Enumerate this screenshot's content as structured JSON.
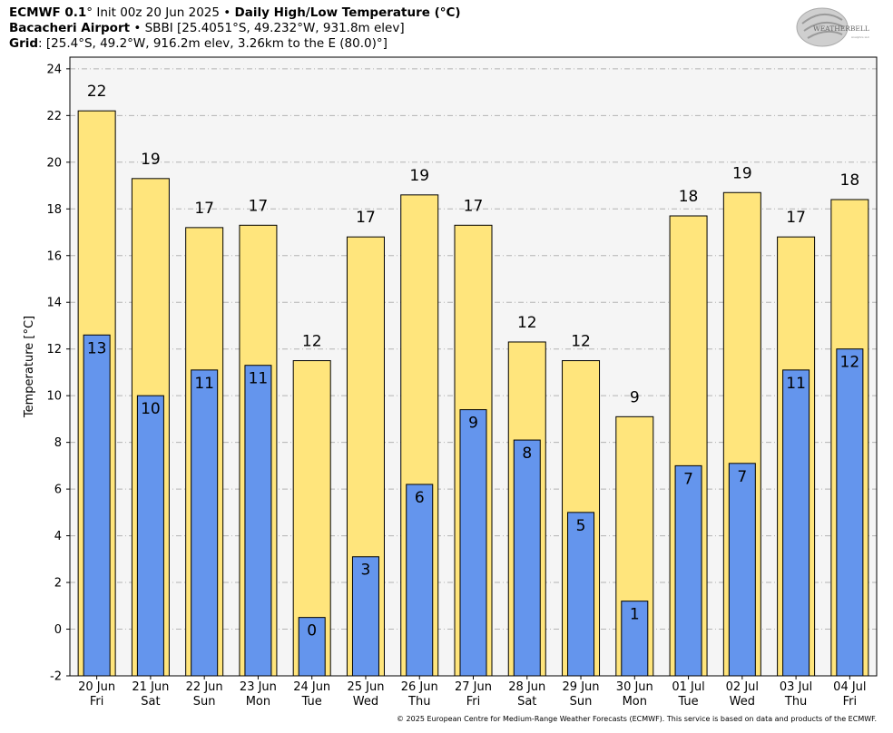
{
  "header": {
    "line1_model": "ECMWF 0.1",
    "line1_rest": "° Init 00z 20 Jun 2025 •",
    "line1_title": "Daily High/Low Temperature (°C)",
    "line2_station": "Bacacheri Airport",
    "line2_rest": "• SBBI [25.4051°S, 49.232°W, 931.8m elev]",
    "line3_label": "Grid",
    "line3_rest": ": [25.4°S, 49.2°W, 916.2m elev, 3.26km to the E (80.0)°]"
  },
  "logo": {
    "text": "WEATHERBELL",
    "sub": "Analytics LLC"
  },
  "footer": "© 2025 European Centre for Medium-Range Weather Forecasts (ECMWF). This service is based on data and products of the ECMWF.",
  "chart_data": {
    "type": "bar",
    "ylabel": "Temperature [°C]",
    "ylim": [
      -2,
      24.5
    ],
    "yticks": [
      -2,
      0,
      2,
      4,
      6,
      8,
      10,
      12,
      14,
      16,
      18,
      20,
      22,
      24
    ],
    "grid": true,
    "categories": [
      {
        "date": "20 Jun",
        "day": "Fri"
      },
      {
        "date": "21 Jun",
        "day": "Sat"
      },
      {
        "date": "22 Jun",
        "day": "Sun"
      },
      {
        "date": "23 Jun",
        "day": "Mon"
      },
      {
        "date": "24 Jun",
        "day": "Tue"
      },
      {
        "date": "25 Jun",
        "day": "Wed"
      },
      {
        "date": "26 Jun",
        "day": "Thu"
      },
      {
        "date": "27 Jun",
        "day": "Fri"
      },
      {
        "date": "28 Jun",
        "day": "Sat"
      },
      {
        "date": "29 Jun",
        "day": "Sun"
      },
      {
        "date": "30 Jun",
        "day": "Mon"
      },
      {
        "date": "01 Jul",
        "day": "Tue"
      },
      {
        "date": "02 Jul",
        "day": "Wed"
      },
      {
        "date": "03 Jul",
        "day": "Thu"
      },
      {
        "date": "04 Jul",
        "day": "Fri"
      }
    ],
    "series": [
      {
        "key": "high",
        "color": "#ffe57c",
        "values": [
          22.2,
          19.3,
          17.2,
          17.3,
          11.5,
          16.8,
          18.6,
          17.3,
          12.3,
          11.5,
          9.1,
          17.7,
          18.7,
          16.8,
          18.4
        ],
        "labels": [
          "22",
          "19",
          "17",
          "17",
          "12",
          "17",
          "19",
          "17",
          "12",
          "12",
          "9",
          "18",
          "19",
          "17",
          "18"
        ]
      },
      {
        "key": "low",
        "color": "#6495ed",
        "values": [
          12.6,
          10.0,
          11.1,
          11.3,
          0.5,
          3.1,
          6.2,
          9.4,
          8.1,
          5.0,
          1.2,
          7.0,
          7.1,
          11.1,
          12.0
        ],
        "labels": [
          "13",
          "10",
          "11",
          "11",
          "0",
          "3",
          "6",
          "9",
          "8",
          "5",
          "1",
          "7",
          "7",
          "11",
          "12"
        ]
      }
    ]
  }
}
